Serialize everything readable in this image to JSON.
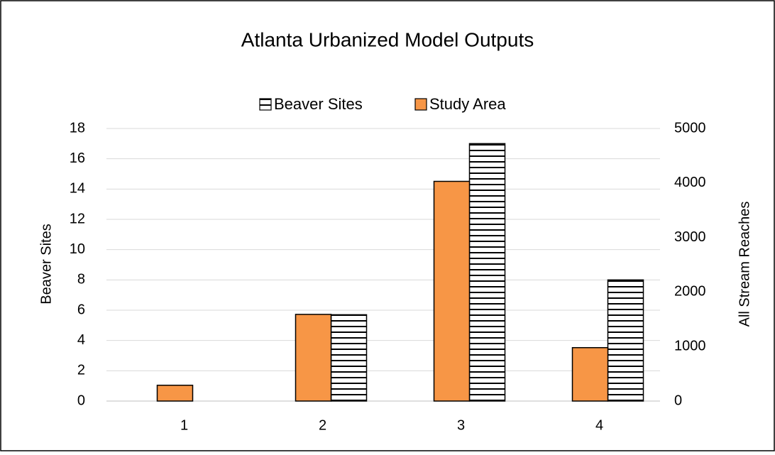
{
  "chart_data": {
    "type": "bar",
    "title": "Atlanta Urbanized Model Outputs",
    "categories": [
      "1",
      "2",
      "3",
      "4"
    ],
    "series": [
      {
        "name": "Beaver Sites",
        "color": "#000000",
        "hatch": "horizontal",
        "values": [
          0,
          5.7,
          17,
          8
        ]
      },
      {
        "name": "Study Area",
        "color": "#f79646",
        "axis": "y2",
        "values": [
          290,
          1590,
          4030,
          980
        ]
      }
    ],
    "ylabel": "Beaver Sites",
    "y2label": "All Stream Reaches",
    "ylim": [
      0,
      18
    ],
    "yticks": [
      0,
      2,
      4,
      6,
      8,
      10,
      12,
      14,
      16,
      18
    ],
    "y2lim": [
      0,
      5000
    ],
    "y2ticks": [
      0,
      1000,
      2000,
      3000,
      4000,
      5000
    ],
    "grid": true,
    "legend": "top"
  }
}
